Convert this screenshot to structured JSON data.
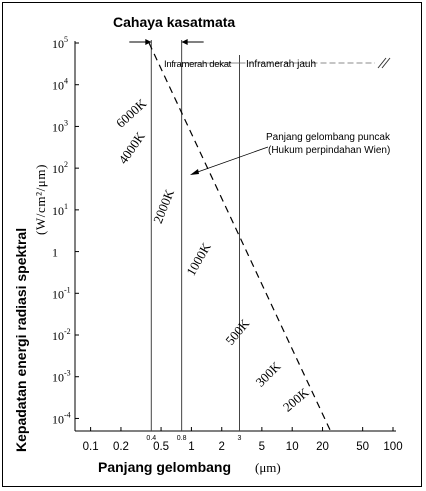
{
  "chart_data": {
    "type": "line",
    "title": "Cahaya kasatmata",
    "xlabel": "Panjang gelombang",
    "xlabel_unit": "(μm)",
    "ylabel": "Kepadatan energi radiasi spektral",
    "ylabel_unit": "(W/cm²/μm)",
    "x_scale": "log",
    "y_scale": "log",
    "xlim": [
      0.07,
      100
    ],
    "ylim": [
      5e-05,
      100000
    ],
    "x_ticks": [
      {
        "value": 0.1,
        "label": "0.1"
      },
      {
        "value": 0.2,
        "label": "0.2"
      },
      {
        "value": 0.5,
        "label": "0.5"
      },
      {
        "value": 1,
        "label": "1"
      },
      {
        "value": 2,
        "label": "2"
      },
      {
        "value": 5,
        "label": "5"
      },
      {
        "value": 10,
        "label": "10"
      },
      {
        "value": 20,
        "label": "20"
      },
      {
        "value": 50,
        "label": "50"
      },
      {
        "value": 100,
        "label": "100"
      }
    ],
    "x_small_ticks": [
      {
        "value": 0.4,
        "label": "0.4"
      },
      {
        "value": 0.8,
        "label": "0.8"
      },
      {
        "value": 3,
        "label": "3"
      }
    ],
    "y_ticks": [
      {
        "value": 100000,
        "base": "10",
        "exp": "5"
      },
      {
        "value": 10000,
        "base": "10",
        "exp": "4"
      },
      {
        "value": 1000,
        "base": "10",
        "exp": "3"
      },
      {
        "value": 100,
        "base": "10",
        "exp": "2"
      },
      {
        "value": 10,
        "base": "10",
        "exp": "1"
      },
      {
        "value": 1,
        "base": "1",
        "exp": ""
      },
      {
        "value": 0.1,
        "base": "10",
        "exp": "-1"
      },
      {
        "value": 0.01,
        "base": "10",
        "exp": "-2"
      },
      {
        "value": 0.001,
        "base": "10",
        "exp": "-3"
      },
      {
        "value": 0.0001,
        "base": "10",
        "exp": "-4"
      }
    ],
    "vertical_lines": [
      0.4,
      0.8,
      3
    ],
    "series": [
      {
        "name": "6000K",
        "temperature": 6000,
        "label_at": [
          0.2,
          900
        ],
        "label_angle": -42
      },
      {
        "name": "4000K",
        "temperature": 4000,
        "label_at": [
          0.22,
          120
        ],
        "label_angle": -55
      },
      {
        "name": "2000K",
        "temperature": 2000,
        "label_at": [
          0.5,
          4.5
        ],
        "label_angle": -68
      },
      {
        "name": "1000K",
        "temperature": 1000,
        "label_at": [
          1.05,
          0.25
        ],
        "label_angle": -60
      },
      {
        "name": "500K",
        "temperature": 500,
        "label_at": [
          2.5,
          0.0055
        ],
        "label_angle": -50
      },
      {
        "name": "300K",
        "temperature": 300,
        "label_at": [
          4.9,
          0.00055
        ],
        "label_angle": -45
      },
      {
        "name": "200K",
        "temperature": 200,
        "label_at": [
          9,
          0.00014
        ],
        "label_angle": -40
      }
    ],
    "wien_line": {
      "x": [
        0.38,
        24
      ],
      "y": [
        100000,
        5e-05
      ]
    },
    "annotations": {
      "near_ir": "Inframerah dekat",
      "far_ir": "Inframerah jauh",
      "peak_line": "Panjang gelombang puncak",
      "wien_law": "(Hukum perpindahan Wien)"
    }
  }
}
